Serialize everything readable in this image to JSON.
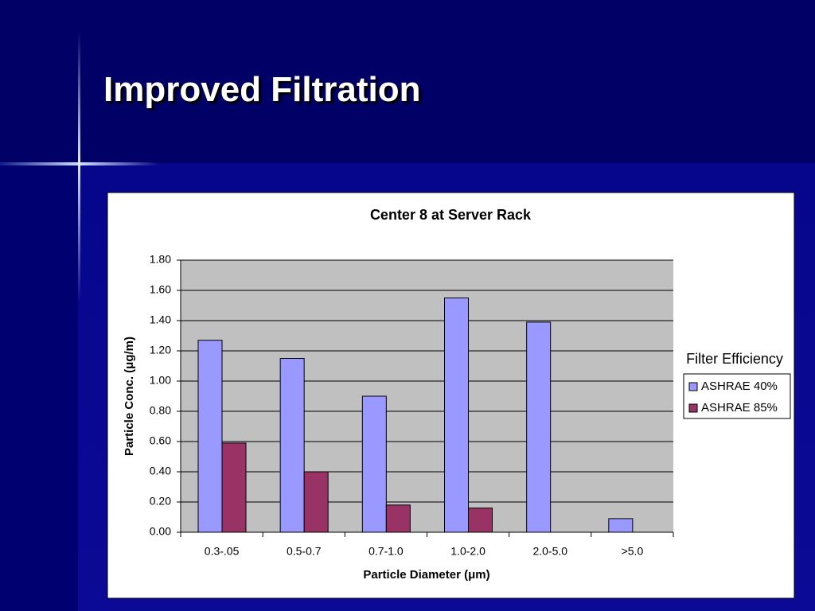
{
  "slide": {
    "title": "Improved Filtration"
  },
  "chart_data": {
    "type": "bar",
    "title": "Center 8 at Server Rack",
    "x_label": "Particle Diameter (μm)",
    "y_label": "Particle Conc. (μg/m)",
    "categories": [
      "0.3-.05",
      "0.5-0.7",
      "0.7-1.0",
      "1.0-2.0",
      "2.0-5.0",
      ">5.0"
    ],
    "legend_title": "Filter Efficiency",
    "legend_position": "right",
    "series": [
      {
        "name": "ASHRAE 40%",
        "color": "#9999ff",
        "values": [
          1.27,
          1.15,
          0.9,
          1.55,
          1.39,
          0.09
        ]
      },
      {
        "name": "ASHRAE 85%",
        "color": "#993366",
        "values": [
          0.59,
          0.4,
          0.18,
          0.16,
          null,
          null
        ]
      }
    ],
    "ylim": [
      0,
      1.8
    ],
    "yticks": [
      {
        "value": 0,
        "label": "0.00"
      },
      {
        "value": 0.2,
        "label": "0.20"
      },
      {
        "value": 0.4,
        "label": "0.40"
      },
      {
        "value": 0.6,
        "label": "0.60"
      },
      {
        "value": 0.8,
        "label": "0.80"
      },
      {
        "value": 1.0,
        "label": "1.00"
      },
      {
        "value": 1.2,
        "label": "1.20"
      },
      {
        "value": 1.4,
        "label": "1.40"
      },
      {
        "value": 1.6,
        "label": "1.60"
      },
      {
        "value": 1.8,
        "label": "1.80"
      }
    ],
    "grid": true,
    "plot_background": "#c0c0c0"
  }
}
